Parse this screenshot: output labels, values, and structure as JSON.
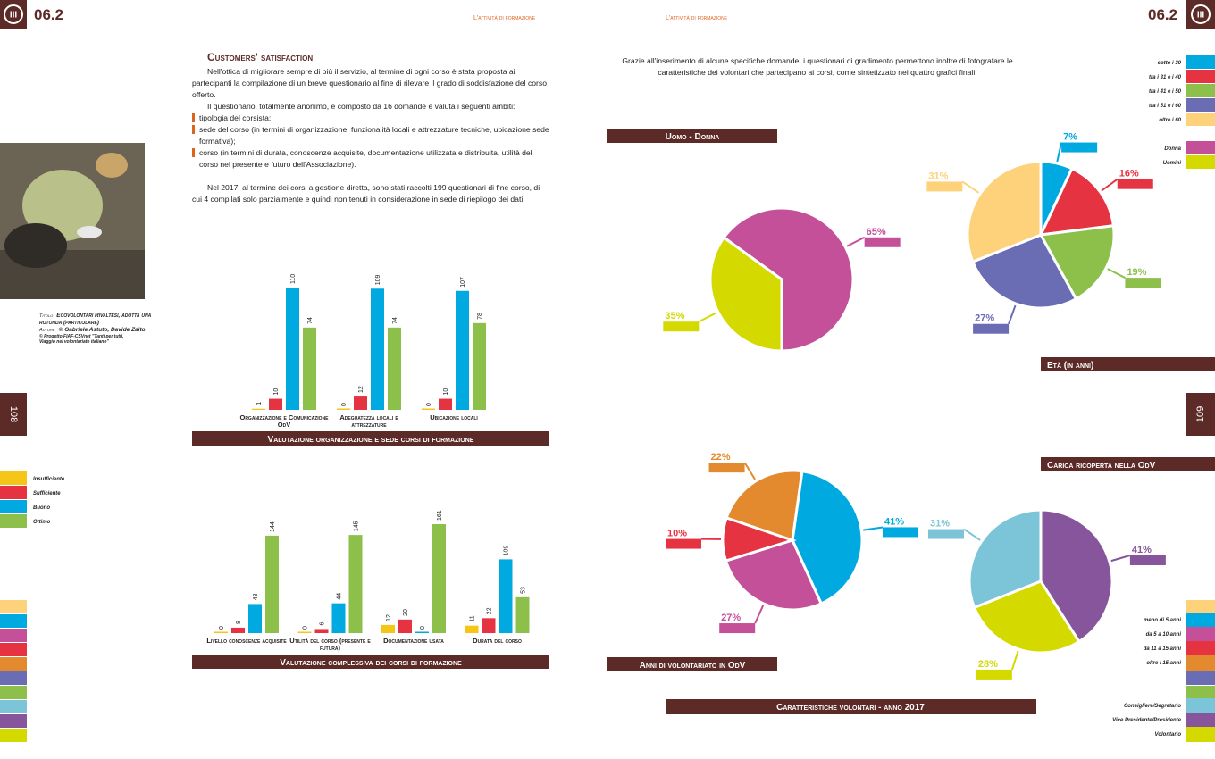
{
  "header": {
    "chapter_icon": "III",
    "section_number": "06.2",
    "running_title": "L'attività di formazione"
  },
  "left_page": {
    "page_number": "108",
    "title": "Customers' satisfaction",
    "intro": "Nell'ottica di migliorare sempre di più il servizio, al termine di ogni corso è stata proposta ai partecipanti la compilazione di un breve questionario al fine di rilevare il grado di soddisfazione del corso offerto.",
    "questionnaire": "Il questionario, totalmente anonimo, è composto da 16 domande e valuta i seguenti ambiti:",
    "bullets": [
      "tipologia del corsista;",
      "sede del corso (in termini di organizzazione, funzionalità locali e attrezzature tecniche, ubicazione sede formativa);",
      "corso (in termini di durata, conoscenze acquisite, documentazione utilizzata e distribuita, utilità del corso nel presente e futuro dell'Associazione)."
    ],
    "closing": "Nel 2017, al termine dei corsi a gestione diretta, sono stati raccolti 199 questionari di fine corso, di cui 4 compilati solo parzialmente e quindi non tenuti in considerazione in sede di riepilogo dei dati."
  },
  "photo_caption": {
    "title_label": "Titolo",
    "title": "Ecovolontari Rivaltesi, adotta una rotonda (particolare)",
    "author_label": "Autore",
    "author": "© Gabriele Astuto, Davide Zaito",
    "credit": "© Progetto FIAF-CSVnet \"Tanti per tutti. Viaggio nel volontariato italiano\""
  },
  "right_page": {
    "page_number": "109",
    "intro": "Grazie all'inserimento di alcune specifiche domande, i questionari di gradimento permettono inoltre di fotografare le caratteristiche dei volontari che partecipano ai corsi, come sintetizzato nei quattro grafici finali.",
    "footer_title": "Caratteristiche volontari - anno 2017"
  },
  "chart_data": [
    {
      "type": "bar",
      "title": "Valutazione organizzazione e sede corsi di formazione",
      "categories": [
        "Organizzazione e Comunicazione OdV",
        "Adeguatezza locali e attrezzature",
        "Ubicazione locali"
      ],
      "series": [
        {
          "name": "Insufficiente",
          "color": "#f5c518",
          "values": [
            1,
            0,
            0
          ]
        },
        {
          "name": "Sufficiente",
          "color": "#e63342",
          "values": [
            10,
            12,
            10
          ]
        },
        {
          "name": "Buono",
          "color": "#00a9e0",
          "values": [
            110,
            109,
            107
          ]
        },
        {
          "name": "Ottimo",
          "color": "#8cc04a",
          "values": [
            74,
            74,
            78
          ]
        }
      ]
    },
    {
      "type": "bar",
      "title": "Valutazione complessiva dei corsi di formazione",
      "categories": [
        "Livello conoscenze acquisite",
        "Utilità del corso (presente e futura)",
        "Documentazione usata",
        "Durata del corso"
      ],
      "series": [
        {
          "color": "#f5c518",
          "values": [
            0,
            0,
            12,
            11
          ]
        },
        {
          "color": "#e63342",
          "values": [
            8,
            6,
            20,
            22
          ]
        },
        {
          "color": "#00a9e0",
          "values": [
            43,
            44,
            0,
            109
          ]
        },
        {
          "color": "#8cc04a",
          "values": [
            144,
            145,
            161,
            53
          ]
        }
      ]
    },
    {
      "type": "pie",
      "title": "Uomo - Donna",
      "categories": [
        "Donna",
        "Uomini"
      ],
      "values": [
        65,
        35
      ],
      "value_labels": [
        "65%",
        "35%"
      ],
      "colors": [
        "#c4509a",
        "#d4d900"
      ]
    },
    {
      "type": "pie",
      "title": "Età (in anni)",
      "categories": [
        "sotto i 30",
        "tra i 31 e i 40",
        "tra i 41 e i 50",
        "tra i 51 e i 60",
        "oltre i 60"
      ],
      "values": [
        7,
        16,
        19,
        27,
        31
      ],
      "value_labels": [
        "7%",
        "16%",
        "19%",
        "27%",
        "31%"
      ],
      "colors": [
        "#00a9e0",
        "#e63342",
        "#8cc04a",
        "#6a6db4",
        "#fdd27a"
      ]
    },
    {
      "type": "pie",
      "title": "Anni di volontariato in OdV",
      "categories": [
        "meno di 5 anni",
        "da 5 a 10 anni",
        "da 11 a 15 anni",
        "oltre i 15 anni"
      ],
      "values": [
        41,
        27,
        10,
        22
      ],
      "value_labels": [
        "41%",
        "27%",
        "10%",
        "22%"
      ],
      "colors": [
        "#00a9e0",
        "#c4509a",
        "#e63342",
        "#e38a2e"
      ]
    },
    {
      "type": "pie",
      "title": "Carica ricoperta nella OdV",
      "categories": [
        "Consigliere/Segretario",
        "Vice Presidente/Presidente",
        "Volontario"
      ],
      "values": [
        31,
        41,
        28
      ],
      "value_labels": [
        "31%",
        "41%",
        "28%"
      ],
      "colors": [
        "#7cc4d8",
        "#87559b",
        "#d4d900"
      ]
    }
  ]
}
